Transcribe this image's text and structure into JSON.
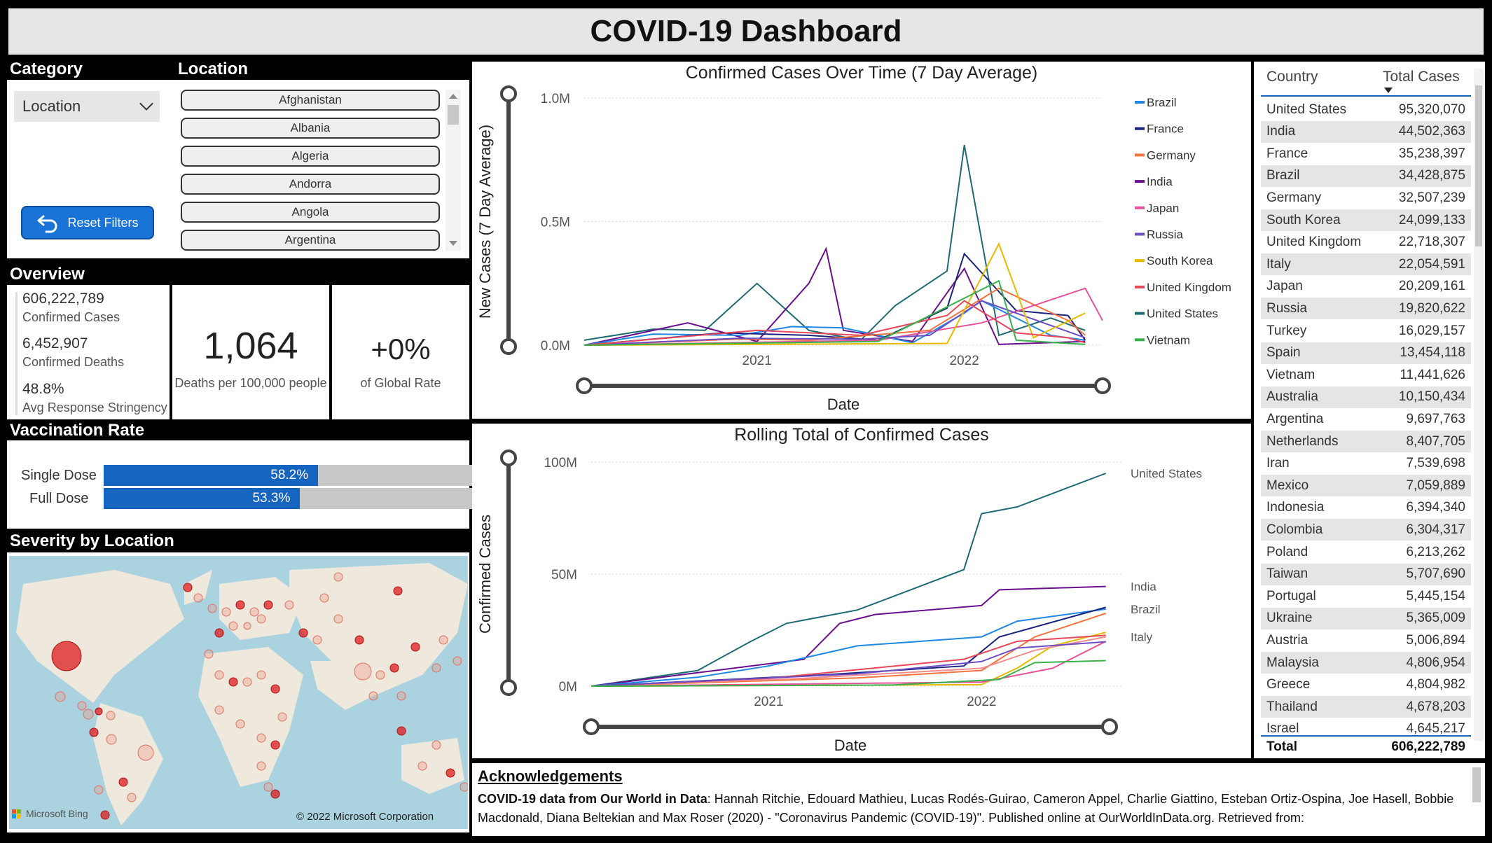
{
  "title": "COVID-19 Dashboard",
  "filters": {
    "category_header": "Category",
    "location_header": "Location",
    "category_value": "Location",
    "reset_label": "Reset Filters",
    "locations": [
      "Afghanistan",
      "Albania",
      "Algeria",
      "Andorra",
      "Angola",
      "Argentina"
    ]
  },
  "overview": {
    "header": "Overview",
    "confirmed_cases": "606,222,789",
    "confirmed_cases_label": "Confirmed Cases",
    "confirmed_deaths": "6,452,907",
    "confirmed_deaths_label": "Confirmed Deaths",
    "stringency": "48.8%",
    "stringency_label": "Avg Response Stringency",
    "deaths_per_100k": "1,064",
    "deaths_per_100k_label": "Deaths per 100,000 people",
    "global_rate": "+0%",
    "global_rate_label": "of Global Rate"
  },
  "vaccination": {
    "header": "Vaccination Rate",
    "single_label": "Single Dose",
    "single_value": "58.2%",
    "single_pct": 58.2,
    "full_label": "Full Dose",
    "full_value": "53.3%",
    "full_pct": 53.3
  },
  "severity": {
    "header": "Severity by Location",
    "bing_label": "Microsoft Bing",
    "copyright": "© 2022 Microsoft Corporation"
  },
  "colors": {
    "Brazil": "#1e88e5",
    "France": "#1a237e",
    "Germany": "#f4733d",
    "India": "#6a0f8e",
    "Japan": "#e6529b",
    "Russia": "#6c4dc4",
    "South Korea": "#e8b900",
    "United Kingdom": "#e8475a",
    "United States": "#1d6b73",
    "Vietnam": "#38b24a",
    "Italy": "#f08c8c",
    "accent": "#1565c0"
  },
  "chart_data": [
    {
      "type": "line",
      "title": "Confirmed Cases Over Time (7 Day Average)",
      "ylabel": "New Cases (7 Day Average)",
      "xlabel": "Date",
      "ylim": [
        0,
        1000000
      ],
      "yticks": [
        "0.0M",
        "0.5M",
        "1.0M"
      ],
      "xticks": [
        "2021",
        "2022"
      ],
      "legend": [
        "Brazil",
        "France",
        "Germany",
        "India",
        "Japan",
        "Russia",
        "South Korea",
        "United Kingdom",
        "United States",
        "Vietnam"
      ],
      "legend_position": "right",
      "series": [
        {
          "name": "United States",
          "x": [
            "2020-03",
            "2020-07",
            "2020-10",
            "2021-01",
            "2021-04",
            "2021-07",
            "2021-09",
            "2021-12",
            "2022-01",
            "2022-03",
            "2022-06",
            "2022-08"
          ],
          "values": [
            20000,
            65000,
            60000,
            250000,
            60000,
            20000,
            160000,
            300000,
            810000,
            40000,
            110000,
            60000
          ]
        },
        {
          "name": "India",
          "x": [
            "2020-03",
            "2020-09",
            "2021-01",
            "2021-04",
            "2021-05",
            "2021-06",
            "2021-10",
            "2022-01",
            "2022-03",
            "2022-08"
          ],
          "values": [
            0,
            90000,
            15000,
            250000,
            390000,
            60000,
            15000,
            310000,
            3000,
            15000
          ]
        },
        {
          "name": "Brazil",
          "x": [
            "2020-03",
            "2020-07",
            "2020-12",
            "2021-03",
            "2021-06",
            "2021-10",
            "2022-01",
            "2022-02",
            "2022-06",
            "2022-08"
          ],
          "values": [
            0,
            45000,
            40000,
            75000,
            70000,
            10000,
            130000,
            180000,
            40000,
            20000
          ]
        },
        {
          "name": "France",
          "x": [
            "2020-03",
            "2020-11",
            "2021-04",
            "2021-08",
            "2021-12",
            "2022-01",
            "2022-04",
            "2022-07",
            "2022-08"
          ],
          "values": [
            0,
            50000,
            40000,
            20000,
            150000,
            370000,
            140000,
            120000,
            20000
          ]
        },
        {
          "name": "Germany",
          "x": [
            "2020-03",
            "2020-12",
            "2021-04",
            "2021-11",
            "2022-03",
            "2022-07",
            "2022-08"
          ],
          "values": [
            0,
            25000,
            20000,
            60000,
            230000,
            100000,
            40000
          ]
        },
        {
          "name": "Japan",
          "x": [
            "2020-03",
            "2021-08",
            "2022-02",
            "2022-08",
            "2022-09"
          ],
          "values": [
            0,
            20000,
            90000,
            230000,
            100000
          ]
        },
        {
          "name": "Russia",
          "x": [
            "2020-03",
            "2020-12",
            "2021-07",
            "2021-11",
            "2022-02",
            "2022-08"
          ],
          "values": [
            0,
            28000,
            24000,
            40000,
            180000,
            30000
          ]
        },
        {
          "name": "South Korea",
          "x": [
            "2020-03",
            "2021-12",
            "2022-03",
            "2022-05",
            "2022-08"
          ],
          "values": [
            0,
            7000,
            410000,
            30000,
            130000
          ]
        },
        {
          "name": "United Kingdom",
          "x": [
            "2020-03",
            "2021-01",
            "2021-07",
            "2021-12",
            "2022-01",
            "2022-04",
            "2022-07",
            "2022-08"
          ],
          "values": [
            0,
            60000,
            40000,
            120000,
            180000,
            50000,
            30000,
            10000
          ]
        },
        {
          "name": "Vietnam",
          "x": [
            "2020-03",
            "2021-08",
            "2022-03",
            "2022-04",
            "2022-08"
          ],
          "values": [
            0,
            15000,
            260000,
            20000,
            3000
          ]
        }
      ]
    },
    {
      "type": "line",
      "title": "Rolling Total of Confirmed Cases",
      "ylabel": "Confirmed Cases",
      "xlabel": "Date",
      "ylim": [
        0,
        100000000
      ],
      "yticks": [
        "0M",
        "50M",
        "100M"
      ],
      "xticks": [
        "2021",
        "2022"
      ],
      "series": [
        {
          "name": "United States",
          "label": "United States",
          "x": [
            "2020-03",
            "2020-09",
            "2020-12",
            "2021-02",
            "2021-06",
            "2021-09",
            "2021-12",
            "2022-01",
            "2022-03",
            "2022-08"
          ],
          "values": [
            0,
            7000000,
            20000000,
            28000000,
            34000000,
            43000000,
            52000000,
            77000000,
            80000000,
            95000000
          ]
        },
        {
          "name": "India",
          "label": "India",
          "x": [
            "2020-03",
            "2020-09",
            "2021-03",
            "2021-05",
            "2021-07",
            "2022-01",
            "2022-02",
            "2022-08"
          ],
          "values": [
            0,
            6000000,
            12000000,
            28000000,
            32000000,
            36000000,
            43000000,
            44500000
          ]
        },
        {
          "name": "Brazil",
          "label": "Brazil",
          "x": [
            "2020-03",
            "2020-09",
            "2021-01",
            "2021-06",
            "2022-01",
            "2022-03",
            "2022-08"
          ],
          "values": [
            0,
            4000000,
            9000000,
            18000000,
            22000000,
            29000000,
            34400000
          ]
        },
        {
          "name": "France",
          "x": [
            "2020-03",
            "2021-04",
            "2021-12",
            "2022-02",
            "2022-08"
          ],
          "values": [
            0,
            5000000,
            9000000,
            22000000,
            35200000
          ]
        },
        {
          "name": "Germany",
          "x": [
            "2020-03",
            "2021-06",
            "2022-01",
            "2022-04",
            "2022-08"
          ],
          "values": [
            0,
            3700000,
            7000000,
            22000000,
            32500000
          ]
        },
        {
          "name": "South Korea",
          "x": [
            "2020-03",
            "2022-01",
            "2022-03",
            "2022-05",
            "2022-08"
          ],
          "values": [
            0,
            700000,
            8000000,
            18000000,
            24000000
          ]
        },
        {
          "name": "Japan",
          "x": [
            "2020-03",
            "2022-01",
            "2022-05",
            "2022-08"
          ],
          "values": [
            0,
            1800000,
            8000000,
            20000000
          ]
        },
        {
          "name": "Italy",
          "label": "Italy",
          "x": [
            "2020-03",
            "2021-03",
            "2022-01",
            "2022-04",
            "2022-08"
          ],
          "values": [
            0,
            3500000,
            8000000,
            16000000,
            22000000
          ]
        },
        {
          "name": "United Kingdom",
          "x": [
            "2020-03",
            "2021-01",
            "2021-12",
            "2022-03",
            "2022-08"
          ],
          "values": [
            0,
            3500000,
            12000000,
            20000000,
            22700000
          ]
        },
        {
          "name": "Russia",
          "x": [
            "2020-03",
            "2021-06",
            "2022-01",
            "2022-03",
            "2022-08"
          ],
          "values": [
            0,
            5500000,
            11000000,
            17000000,
            19800000
          ]
        },
        {
          "name": "Vietnam",
          "x": [
            "2020-03",
            "2021-08",
            "2022-02",
            "2022-04",
            "2022-08"
          ],
          "values": [
            0,
            500000,
            3000000,
            10500000,
            11400000
          ]
        }
      ],
      "labels": [
        "United States",
        "India",
        "Brazil",
        "Italy"
      ]
    }
  ],
  "table": {
    "col_country": "Country",
    "col_total": "Total Cases",
    "rows": [
      [
        "United States",
        "95,320,070"
      ],
      [
        "India",
        "44,502,363"
      ],
      [
        "France",
        "35,238,397"
      ],
      [
        "Brazil",
        "34,428,875"
      ],
      [
        "Germany",
        "32,507,239"
      ],
      [
        "South Korea",
        "24,099,133"
      ],
      [
        "United Kingdom",
        "22,718,307"
      ],
      [
        "Italy",
        "22,054,591"
      ],
      [
        "Japan",
        "20,209,161"
      ],
      [
        "Russia",
        "19,820,622"
      ],
      [
        "Turkey",
        "16,029,157"
      ],
      [
        "Spain",
        "13,454,118"
      ],
      [
        "Vietnam",
        "11,441,626"
      ],
      [
        "Australia",
        "10,150,434"
      ],
      [
        "Argentina",
        "9,697,763"
      ],
      [
        "Netherlands",
        "8,407,705"
      ],
      [
        "Iran",
        "7,539,698"
      ],
      [
        "Mexico",
        "7,059,889"
      ],
      [
        "Indonesia",
        "6,394,340"
      ],
      [
        "Colombia",
        "6,304,317"
      ],
      [
        "Poland",
        "6,213,262"
      ],
      [
        "Taiwan",
        "5,707,690"
      ],
      [
        "Portugal",
        "5,445,154"
      ],
      [
        "Ukraine",
        "5,365,009"
      ],
      [
        "Austria",
        "5,006,894"
      ],
      [
        "Malaysia",
        "4,806,954"
      ],
      [
        "Greece",
        "4,804,982"
      ],
      [
        "Thailand",
        "4,678,203"
      ],
      [
        "Israel",
        "4,645,217"
      ]
    ],
    "total_label": "Total",
    "total_value": "606,222,789"
  },
  "acknowledgements": {
    "heading": "Acknowledgements",
    "bold": "COVID-19 data from Our World in Data",
    "text": ": Hannah Ritchie, Edouard Mathieu, Lucas Rodés-Guirao, Cameron Appel, Charlie Giattino, Esteban Ortiz-Ospina, Joe Hasell, Bobbie Macdonald, Diana Beltekian and Max Roser (2020) - \"Coronavirus Pandemic (COVID-19)\". Published online at OurWorldInData.org. Retrieved from:"
  }
}
